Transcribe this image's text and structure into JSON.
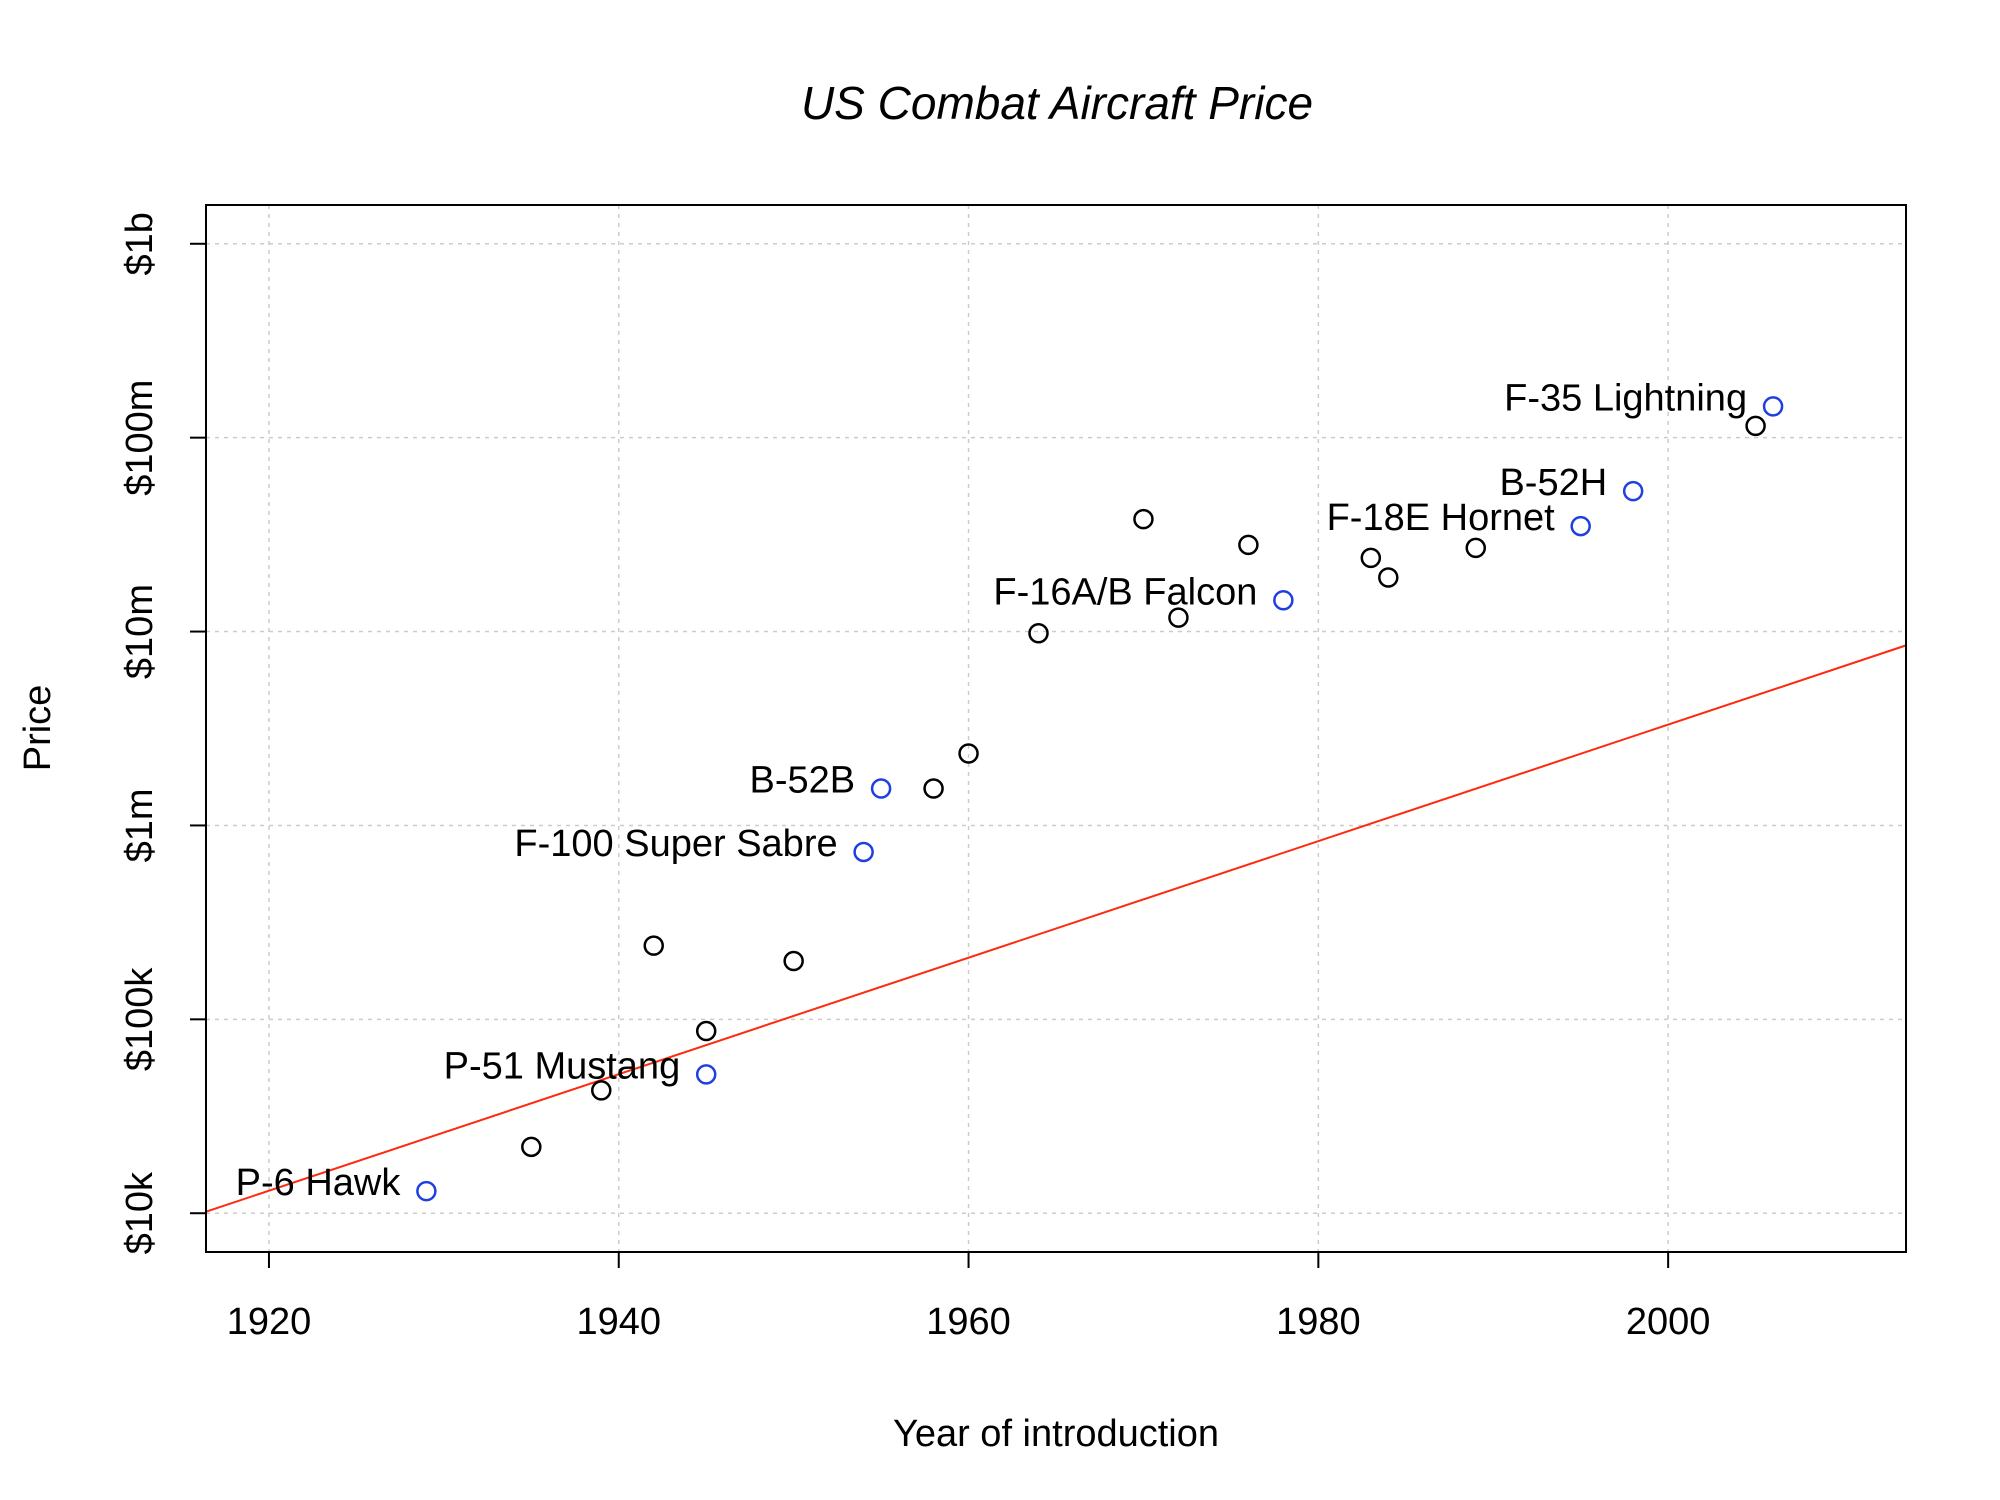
{
  "chart_data": {
    "type": "scatter",
    "title": "US Combat Aircraft Price",
    "xlabel": "Year of introduction",
    "ylabel": "Price",
    "y_scale": "log10",
    "xlim": [
      1916.4,
      2013.6
    ],
    "ylim_log10": [
      3.8,
      9.2
    ],
    "grid": true,
    "x_ticks": [
      1920,
      1940,
      1960,
      1980,
      2000
    ],
    "x_tick_labels": [
      "1920",
      "1940",
      "1960",
      "1980",
      "2000"
    ],
    "y_ticks_log10": [
      4,
      5,
      6,
      7,
      8,
      9
    ],
    "y_tick_labels": [
      "$10k",
      "$100k",
      "$1m",
      "$10m",
      "$100m",
      "$1b"
    ],
    "colors": {
      "unlabeled": "#000000",
      "labeled": "#1f3fe0",
      "fit": "#ff2a0e",
      "grid": "#cccccc"
    },
    "fit_line": {
      "intercept_log10": -53.58,
      "slope_log10": 0.03005
    },
    "series": [
      {
        "name": "unlabeled",
        "points": [
          {
            "x": 1935,
            "y": 22000
          },
          {
            "x": 1939,
            "y": 43000
          },
          {
            "x": 1942,
            "y": 240000
          },
          {
            "x": 1945,
            "y": 87000
          },
          {
            "x": 1950,
            "y": 200000
          },
          {
            "x": 1958,
            "y": 1550000
          },
          {
            "x": 1960,
            "y": 2350000
          },
          {
            "x": 1964,
            "y": 9800000
          },
          {
            "x": 1970,
            "y": 38000000
          },
          {
            "x": 1972,
            "y": 11800000
          },
          {
            "x": 1976,
            "y": 28000000
          },
          {
            "x": 1983,
            "y": 24000000
          },
          {
            "x": 1984,
            "y": 19000000
          },
          {
            "x": 1989,
            "y": 27000000
          },
          {
            "x": 2005,
            "y": 115000000
          }
        ]
      },
      {
        "name": "labeled",
        "points": [
          {
            "x": 1929,
            "y": 13000,
            "label": "P-6 Hawk"
          },
          {
            "x": 1945,
            "y": 52000,
            "label": "P-51 Mustang"
          },
          {
            "x": 1954,
            "y": 730000,
            "label": "F-100 Super Sabre"
          },
          {
            "x": 1955,
            "y": 1550000,
            "label": "B-52B"
          },
          {
            "x": 1978,
            "y": 14500000,
            "label": "F-16A/B Falcon"
          },
          {
            "x": 1995,
            "y": 35000000,
            "label": "F-18E Hornet"
          },
          {
            "x": 1998,
            "y": 53000000,
            "label": "B-52H"
          },
          {
            "x": 2006,
            "y": 145000000,
            "label": "F-35 Lightning"
          }
        ]
      }
    ]
  }
}
